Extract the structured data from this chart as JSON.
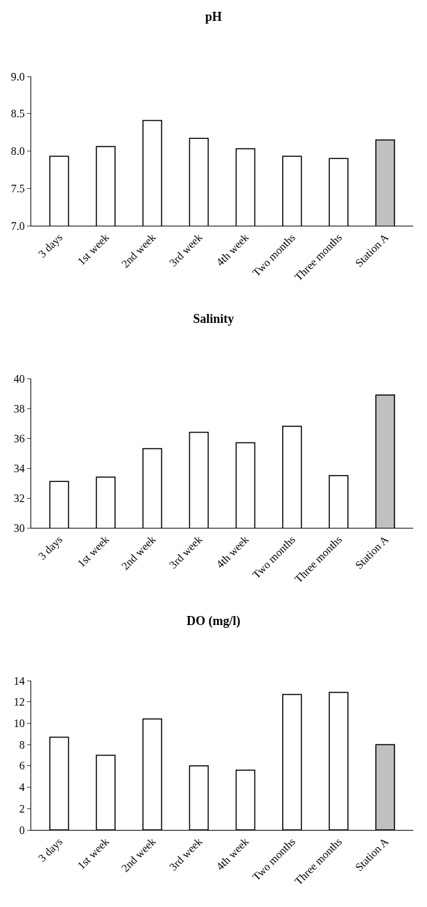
{
  "chart_data": [
    {
      "type": "bar",
      "title": "pH",
      "categories": [
        "3 days",
        "1st week",
        "2nd week",
        "3rd week",
        "4th week",
        "Two months",
        "Three months",
        "Station A"
      ],
      "values": [
        7.93,
        8.06,
        8.41,
        8.17,
        8.03,
        7.93,
        7.9,
        8.15
      ],
      "colors": [
        "#ffffff",
        "#ffffff",
        "#ffffff",
        "#ffffff",
        "#ffffff",
        "#ffffff",
        "#ffffff",
        "#c0c0c0"
      ],
      "ylim": [
        7.0,
        9.0
      ],
      "yticks": [
        {
          "value": 7.0,
          "label": "7.0"
        },
        7.5,
        {
          "value": 8.0,
          "label": "8.0"
        },
        8.5,
        {
          "value": 9.0,
          "label": "9.0"
        }
      ],
      "grid": false
    },
    {
      "type": "bar",
      "title": "Salinity",
      "categories": [
        "3 days",
        "1st week",
        "2nd week",
        "3rd week",
        "4th week",
        "Two months",
        "Three months",
        "Station A"
      ],
      "values": [
        33.1,
        33.4,
        35.3,
        36.4,
        35.7,
        36.8,
        33.5,
        38.9
      ],
      "colors": [
        "#ffffff",
        "#ffffff",
        "#ffffff",
        "#ffffff",
        "#ffffff",
        "#ffffff",
        "#ffffff",
        "#c0c0c0"
      ],
      "ylim": [
        30,
        40
      ],
      "yticks": [
        30,
        32,
        34,
        36,
        38,
        40
      ],
      "grid": false
    },
    {
      "type": "bar",
      "title": "DO (mg/l)",
      "categories": [
        "3 days",
        "1st week",
        "2nd week",
        "3rd week",
        "4th week",
        "Two months",
        "Three months",
        "Station A"
      ],
      "values": [
        8.7,
        7.0,
        10.4,
        6.0,
        5.6,
        12.7,
        12.9,
        8.0
      ],
      "colors": [
        "#ffffff",
        "#ffffff",
        "#ffffff",
        "#ffffff",
        "#ffffff",
        "#ffffff",
        "#ffffff",
        "#c0c0c0"
      ],
      "ylim": [
        0,
        14
      ],
      "yticks": [
        0,
        2,
        4,
        6,
        8,
        10,
        12,
        14
      ],
      "grid": false
    }
  ]
}
